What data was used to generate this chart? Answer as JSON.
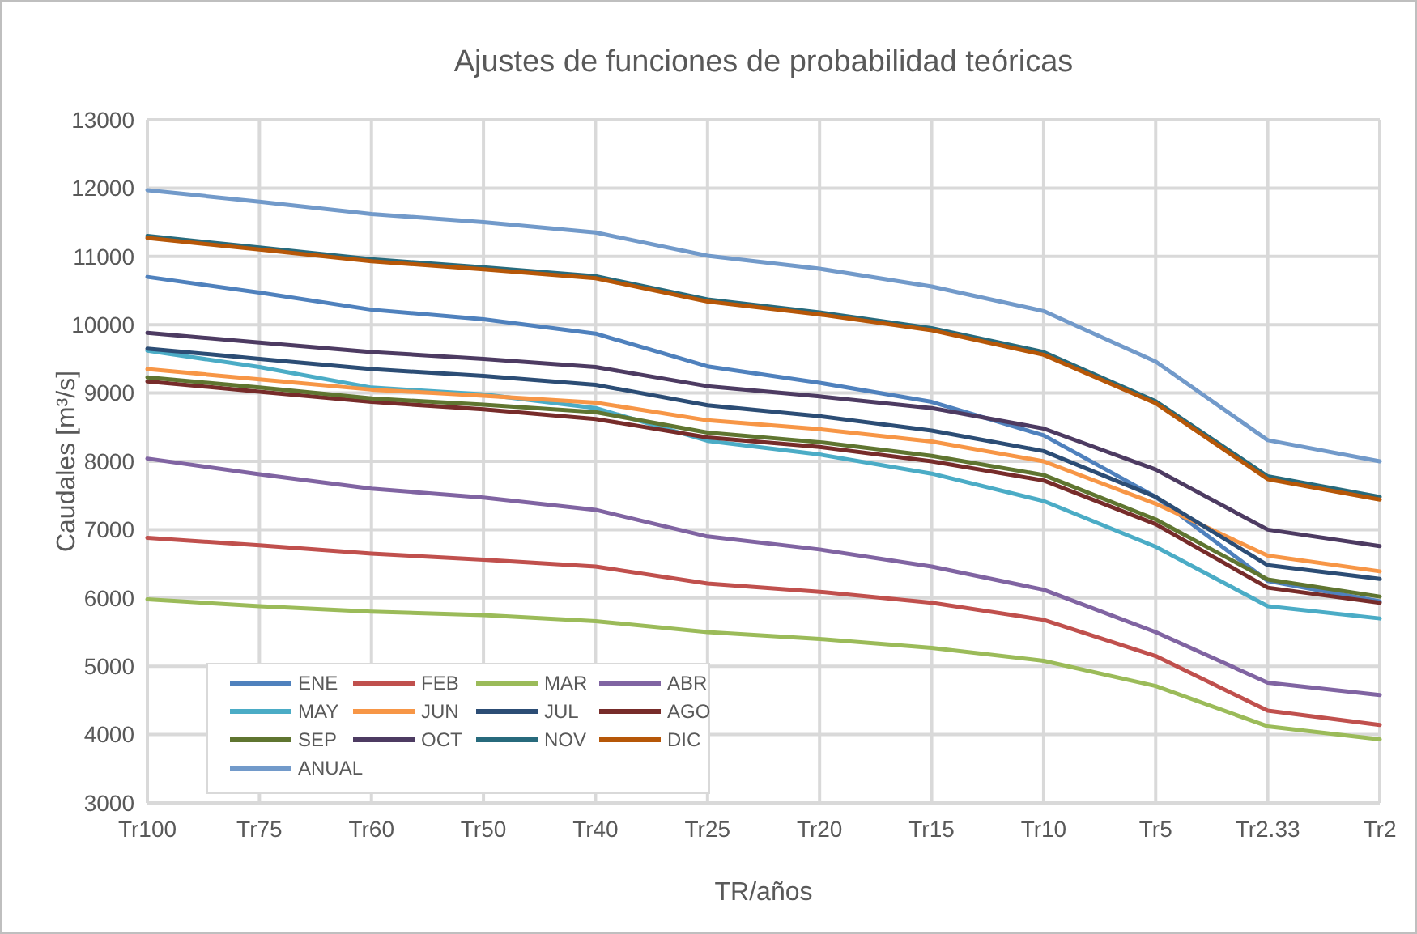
{
  "chart_data": {
    "type": "line",
    "title": "Ajustes de funciones de probabilidad  teóricas",
    "xlabel": "TR/años",
    "ylabel": "Caudales [m³/s]",
    "categories": [
      "Tr100",
      "Tr75",
      "Tr60",
      "Tr50",
      "Tr40",
      "Tr25",
      "Tr20",
      "Tr15",
      "Tr10",
      "Tr5",
      "Tr2.33",
      "Tr2"
    ],
    "ylim": [
      3000,
      13000
    ],
    "yticks": [
      3000,
      4000,
      5000,
      6000,
      7000,
      8000,
      9000,
      10000,
      11000,
      12000,
      13000
    ],
    "grid": true,
    "legend": "bottom left",
    "line_style": "solid",
    "series": [
      {
        "name": "ENE",
        "color": "#4f81bd",
        "values": [
          10700,
          10470,
          10220,
          10080,
          9870,
          9390,
          9150,
          8870,
          8380,
          7480,
          6250,
          5950
        ]
      },
      {
        "name": "FEB",
        "color": "#c0504d",
        "values": [
          6880,
          6770,
          6650,
          6560,
          6460,
          6210,
          6090,
          5930,
          5680,
          5150,
          4350,
          4140
        ]
      },
      {
        "name": "MAR",
        "color": "#9bbb59",
        "values": [
          5980,
          5880,
          5800,
          5750,
          5660,
          5500,
          5400,
          5270,
          5080,
          4710,
          4120,
          3930
        ]
      },
      {
        "name": "ABR",
        "color": "#8064a2",
        "values": [
          8040,
          7810,
          7600,
          7470,
          7290,
          6900,
          6710,
          6460,
          6120,
          5500,
          4760,
          4580
        ]
      },
      {
        "name": "MAY",
        "color": "#4bacc6",
        "values": [
          9620,
          9380,
          9080,
          8980,
          8780,
          8300,
          8100,
          7820,
          7420,
          6750,
          5880,
          5700
        ]
      },
      {
        "name": "JUN",
        "color": "#f79646",
        "values": [
          9350,
          9200,
          9050,
          8960,
          8860,
          8600,
          8470,
          8290,
          8000,
          7380,
          6620,
          6390
        ]
      },
      {
        "name": "JUL",
        "color": "#2c4d75",
        "values": [
          9650,
          9500,
          9350,
          9250,
          9120,
          8820,
          8660,
          8450,
          8150,
          7480,
          6480,
          6280
        ]
      },
      {
        "name": "AGO",
        "color": "#772c2a",
        "values": [
          9170,
          9020,
          8870,
          8760,
          8620,
          8350,
          8210,
          8000,
          7720,
          7080,
          6150,
          5930
        ]
      },
      {
        "name": "SEP",
        "color": "#5f7530",
        "values": [
          9230,
          9080,
          8920,
          8830,
          8720,
          8420,
          8280,
          8080,
          7800,
          7150,
          6270,
          6020
        ]
      },
      {
        "name": "OCT",
        "color": "#4d3b62",
        "values": [
          9880,
          9740,
          9600,
          9500,
          9380,
          9100,
          8950,
          8780,
          8480,
          7880,
          7000,
          6760
        ]
      },
      {
        "name": "NOV",
        "color": "#276a7c",
        "values": [
          11300,
          11130,
          10960,
          10840,
          10710,
          10370,
          10180,
          9950,
          9600,
          8880,
          7780,
          7480
        ]
      },
      {
        "name": "DIC",
        "color": "#b65708",
        "values": [
          11270,
          11100,
          10930,
          10810,
          10680,
          10340,
          10150,
          9920,
          9560,
          8850,
          7740,
          7440
        ]
      },
      {
        "name": "ANUAL",
        "color": "#729aca",
        "values": [
          11970,
          11800,
          11620,
          11500,
          11350,
          11010,
          10820,
          10560,
          10200,
          9460,
          8310,
          8000
        ]
      }
    ]
  }
}
